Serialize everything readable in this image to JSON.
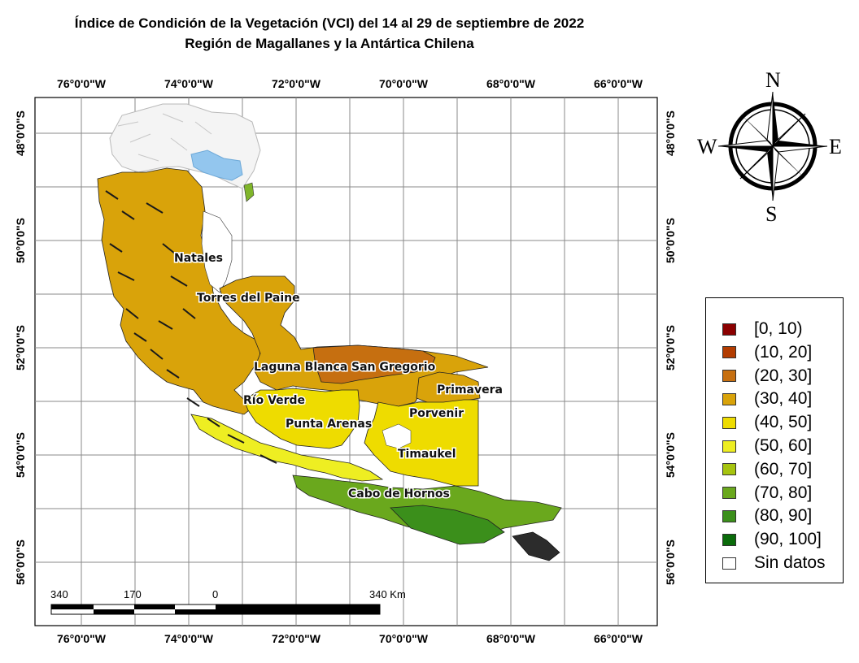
{
  "title": {
    "line1": "Índice de Condición de la Vegetación (VCI) del 14 al 29 de septiembre de 2022",
    "line2": "Región de Magallanes y la Antártica Chilena"
  },
  "axes": {
    "longitude_labels": [
      "76°0'0\"W",
      "74°0'0\"W",
      "72°0'0\"W",
      "70°0'0\"W",
      "68°0'0\"W",
      "66°0'0\"W"
    ],
    "latitude_labels": [
      "48°0'0\"S",
      "50°0'0\"S",
      "52°0'0\"S",
      "54°0'0\"S",
      "56°0'0\"S"
    ]
  },
  "places": {
    "natales": "Natales",
    "torres": "Torres del Paine",
    "laguna": "Laguna Blanca",
    "sangregorio": "San Gregorio",
    "primavera": "Primavera",
    "rioverde": "Río Verde",
    "porvenir": "Porvenir",
    "puntaarenas": "Punta Arenas",
    "timaukel": "Timaukel",
    "cabo": "Cabo de Hornos"
  },
  "scalebar": {
    "labels": [
      "340",
      "170",
      "0",
      "340 Km"
    ]
  },
  "compass": {
    "n": "N",
    "s": "S",
    "e": "E",
    "w": "W"
  },
  "legend": {
    "items": [
      {
        "label": "[0, 10)",
        "color": "#8b0000"
      },
      {
        "label": "(10, 20]",
        "color": "#b33c00"
      },
      {
        "label": "(20, 30]",
        "color": "#c66f10"
      },
      {
        "label": "(30, 40]",
        "color": "#d9a30a"
      },
      {
        "label": "(40, 50]",
        "color": "#eedc00"
      },
      {
        "label": "(50, 60]",
        "color": "#eeee22"
      },
      {
        "label": "(60, 70]",
        "color": "#a6c40f"
      },
      {
        "label": "(70, 80]",
        "color": "#6aa81d"
      },
      {
        "label": "(80, 90]",
        "color": "#3b8f1b"
      },
      {
        "label": "(90, 100]",
        "color": "#0a6b0a"
      },
      {
        "label": "Sin datos",
        "color": "#ffffff"
      }
    ]
  }
}
